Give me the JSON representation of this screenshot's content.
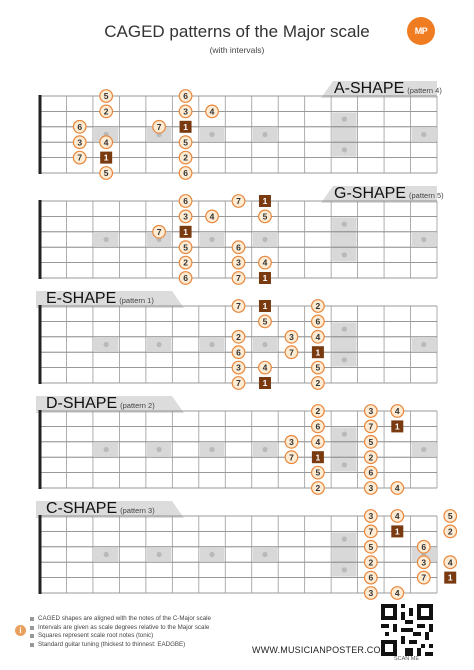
{
  "title": "CAGED patterns of the Major scale",
  "subtitle": "(with intervals)",
  "logo_text": "MP",
  "colors": {
    "accent": "#e9863a",
    "note_fill": "#fdebd3",
    "root_fill": "#7a3a10",
    "inlay": "#d8d8d8",
    "tab": "#dcdcdc"
  },
  "shapes": [
    {
      "name": "A-SHAPE",
      "pattern": "(pattern 4)",
      "side": "right",
      "fret0": true,
      "notes": [
        [
          1,
          3,
          "5",
          0
        ],
        [
          1,
          6,
          "6",
          0
        ],
        [
          2,
          3,
          "2",
          0
        ],
        [
          2,
          6,
          "3",
          0
        ],
        [
          2,
          7,
          "4",
          0
        ],
        [
          3,
          2,
          "6",
          0
        ],
        [
          3,
          5,
          "7",
          0
        ],
        [
          3,
          6,
          "1",
          1
        ],
        [
          4,
          2,
          "3",
          0
        ],
        [
          4,
          3,
          "4",
          0
        ],
        [
          4,
          6,
          "5",
          0
        ],
        [
          5,
          2,
          "7",
          0
        ],
        [
          5,
          3,
          "1",
          1
        ],
        [
          5,
          6,
          "2",
          0
        ],
        [
          6,
          3,
          "5",
          0
        ],
        [
          6,
          6,
          "6",
          0
        ]
      ]
    },
    {
      "name": "G-SHAPE",
      "pattern": "(pattern 5)",
      "side": "right",
      "fret0": true,
      "notes": [
        [
          1,
          6,
          "6",
          0
        ],
        [
          1,
          8,
          "7",
          0
        ],
        [
          1,
          9,
          "1",
          1
        ],
        [
          2,
          6,
          "3",
          0
        ],
        [
          2,
          7,
          "4",
          0
        ],
        [
          2,
          9,
          "5",
          0
        ],
        [
          3,
          5,
          "7",
          0
        ],
        [
          3,
          6,
          "1",
          1
        ],
        [
          4,
          6,
          "5",
          0
        ],
        [
          4,
          8,
          "6",
          0
        ],
        [
          5,
          6,
          "2",
          0
        ],
        [
          5,
          8,
          "3",
          0
        ],
        [
          5,
          9,
          "4",
          0
        ],
        [
          6,
          6,
          "6",
          0
        ],
        [
          6,
          8,
          "7",
          0
        ],
        [
          6,
          9,
          "1",
          1
        ]
      ]
    },
    {
      "name": "E-SHAPE",
      "pattern": "(pattern 1)",
      "side": "left",
      "fret0": false,
      "notes": [
        [
          1,
          8,
          "7",
          0
        ],
        [
          1,
          9,
          "1",
          1
        ],
        [
          1,
          11,
          "2",
          0
        ],
        [
          2,
          9,
          "5",
          0
        ],
        [
          2,
          11,
          "6",
          0
        ],
        [
          3,
          8,
          "2",
          0
        ],
        [
          3,
          10,
          "3",
          0
        ],
        [
          3,
          11,
          "4",
          0
        ],
        [
          4,
          8,
          "6",
          0
        ],
        [
          4,
          10,
          "7",
          0
        ],
        [
          4,
          11,
          "1",
          1
        ],
        [
          5,
          8,
          "3",
          0
        ],
        [
          5,
          9,
          "4",
          0
        ],
        [
          5,
          11,
          "5",
          0
        ],
        [
          6,
          8,
          "7",
          0
        ],
        [
          6,
          9,
          "1",
          1
        ],
        [
          6,
          11,
          "2",
          0
        ]
      ]
    },
    {
      "name": "D-SHAPE",
      "pattern": "(pattern 2)",
      "side": "left",
      "fret0": false,
      "notes": [
        [
          1,
          11,
          "2",
          0
        ],
        [
          1,
          13,
          "3",
          0
        ],
        [
          1,
          14,
          "4",
          0
        ],
        [
          2,
          11,
          "6",
          0
        ],
        [
          2,
          13,
          "7",
          0
        ],
        [
          2,
          14,
          "1",
          1
        ],
        [
          3,
          10,
          "3",
          0
        ],
        [
          3,
          11,
          "4",
          0
        ],
        [
          3,
          13,
          "5",
          0
        ],
        [
          4,
          10,
          "7",
          0
        ],
        [
          4,
          11,
          "1",
          1
        ],
        [
          4,
          13,
          "2",
          0
        ],
        [
          5,
          11,
          "5",
          0
        ],
        [
          5,
          13,
          "6",
          0
        ],
        [
          6,
          11,
          "2",
          0
        ],
        [
          6,
          13,
          "3",
          0
        ],
        [
          6,
          14,
          "4",
          0
        ]
      ]
    },
    {
      "name": "C-SHAPE",
      "pattern": "(pattern 3)",
      "side": "left",
      "fret0": false,
      "notes": [
        [
          1,
          13,
          "3",
          0
        ],
        [
          1,
          14,
          "4",
          0
        ],
        [
          1,
          16,
          "5",
          0
        ],
        [
          2,
          13,
          "7",
          0
        ],
        [
          2,
          14,
          "1",
          1
        ],
        [
          2,
          16,
          "2",
          0
        ],
        [
          3,
          13,
          "5",
          0
        ],
        [
          3,
          15,
          "6",
          0
        ],
        [
          4,
          13,
          "2",
          0
        ],
        [
          4,
          15,
          "3",
          0
        ],
        [
          4,
          16,
          "4",
          0
        ],
        [
          5,
          13,
          "6",
          0
        ],
        [
          5,
          15,
          "7",
          0
        ],
        [
          5,
          16,
          "1",
          1
        ],
        [
          6,
          13,
          "3",
          0
        ],
        [
          6,
          14,
          "4",
          0
        ]
      ]
    }
  ],
  "notes_list": [
    "CAGED shapes are aligned with the notes of the C-Major scale",
    "Intervals are given as scale degrees relative to the Major scale",
    "Squares represent scale root notes (tonic)",
    "Standard guitar tuning (thickest to thinnest: EADGBE)"
  ],
  "info_icon": "i",
  "url": "WWW.MUSICIANPOSTER.COM",
  "scan_label": "SCAN ME"
}
